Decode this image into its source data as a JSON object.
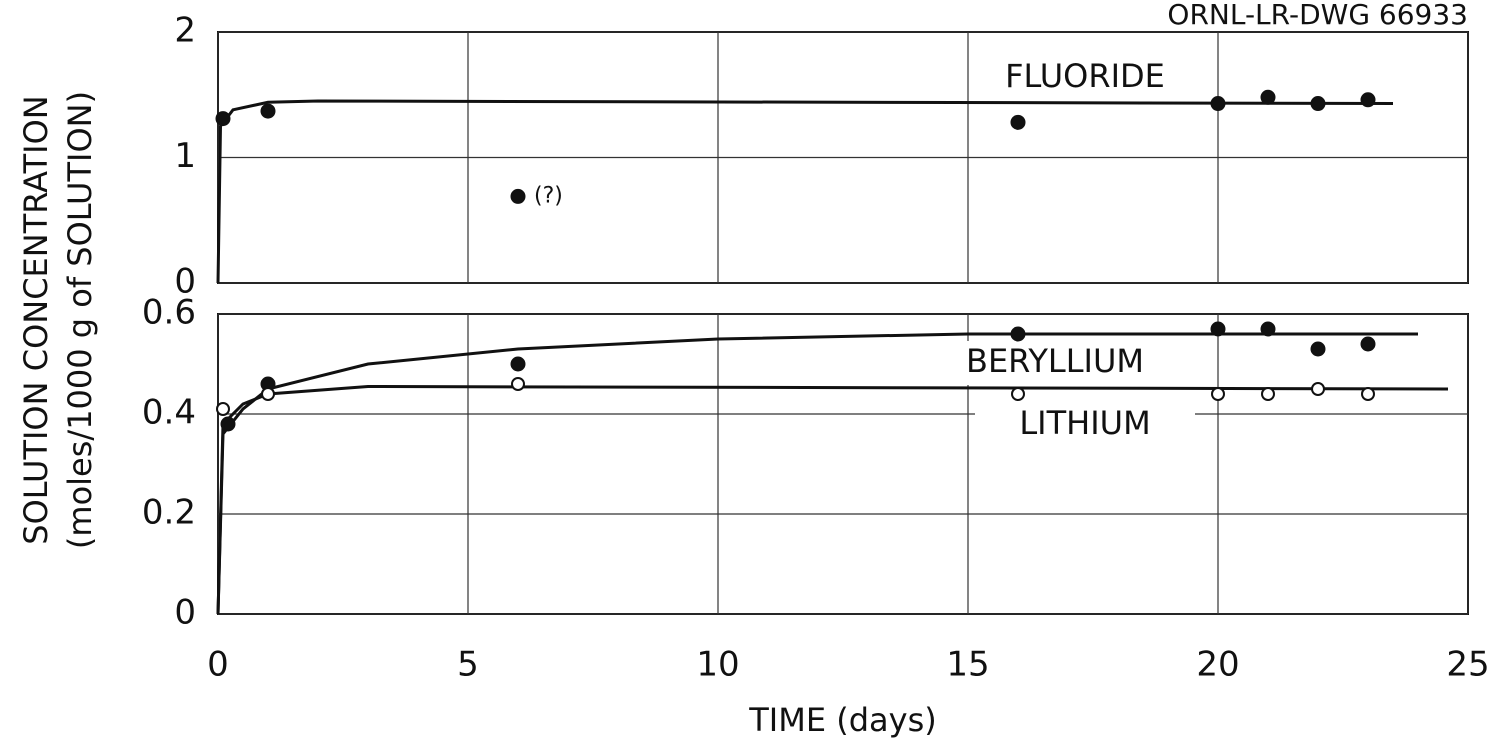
{
  "drawing_number": "ORNL-LR-DWG 66933",
  "ylabel": [
    "SOLUTION CONCENTRATION",
    "(moles/1000 g of SOLUTION)"
  ],
  "xlabel": "TIME (days)",
  "chart_data": [
    {
      "type": "scatter",
      "xlim": [
        0,
        25
      ],
      "xticks": [
        0,
        5,
        10,
        15,
        20,
        25
      ],
      "ylim": [
        0,
        2
      ],
      "yticks": [
        0,
        1,
        2
      ],
      "grid": true,
      "annotation": "(?)",
      "series": [
        {
          "name": "FLUORIDE",
          "marker": "filled",
          "color": "#111",
          "x": [
            0.1,
            1,
            6,
            16,
            20,
            21,
            22,
            23
          ],
          "values": [
            1.31,
            1.37,
            0.69,
            1.28,
            1.43,
            1.48,
            1.43,
            1.46
          ],
          "fit_x": [
            0,
            0.05,
            0.3,
            1,
            2,
            23.5
          ],
          "fit_values": [
            0,
            1.25,
            1.38,
            1.44,
            1.45,
            1.43
          ]
        }
      ]
    },
    {
      "type": "scatter",
      "xlim": [
        0,
        25
      ],
      "xticks": [
        0,
        5,
        10,
        15,
        20,
        25
      ],
      "ylim": [
        0,
        0.6
      ],
      "yticks": [
        0,
        0.2,
        0.4,
        0.6
      ],
      "grid": true,
      "series": [
        {
          "name": "BERYLLIUM",
          "marker": "filled",
          "color": "#111",
          "x": [
            0.2,
            1,
            6,
            16,
            20,
            21,
            22,
            23
          ],
          "values": [
            0.38,
            0.46,
            0.5,
            0.56,
            0.57,
            0.57,
            0.53,
            0.54
          ],
          "fit_x": [
            0,
            0.1,
            0.5,
            1,
            3,
            6,
            10,
            15,
            24
          ],
          "fit_values": [
            0,
            0.36,
            0.41,
            0.45,
            0.5,
            0.53,
            0.55,
            0.56,
            0.56
          ]
        },
        {
          "name": "LITHIUM",
          "marker": "open",
          "color": "#111",
          "x": [
            0.1,
            1,
            6,
            16,
            20,
            21,
            22,
            23
          ],
          "values": [
            0.41,
            0.44,
            0.46,
            0.44,
            0.44,
            0.44,
            0.45,
            0.44
          ],
          "fit_x": [
            0,
            0.1,
            0.5,
            1,
            3,
            24.6
          ],
          "fit_values": [
            0,
            0.38,
            0.42,
            0.44,
            0.455,
            0.45
          ]
        }
      ]
    }
  ]
}
